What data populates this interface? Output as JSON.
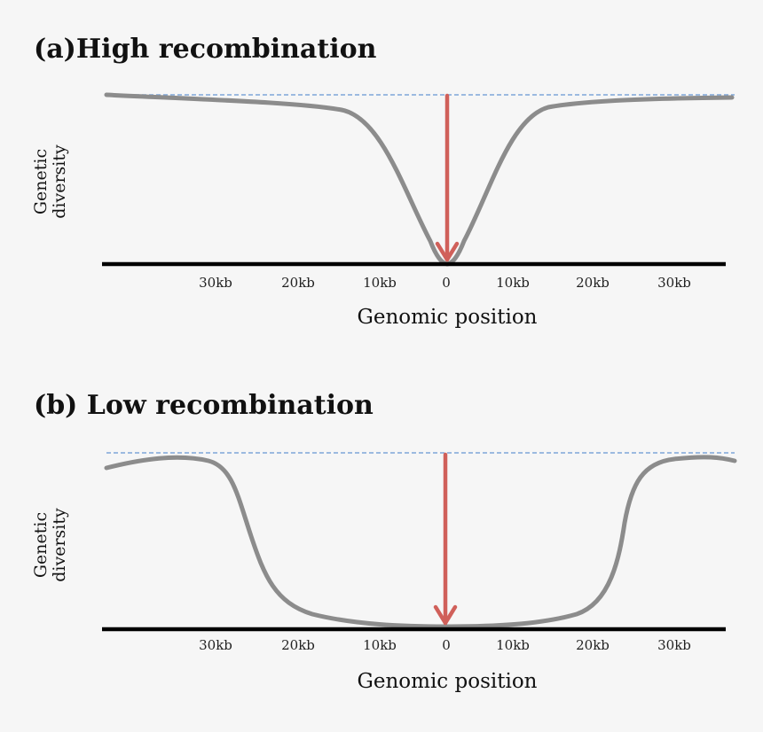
{
  "panels": [
    {
      "title": "(a)High recombination",
      "ylabel_line1": "Genetic",
      "ylabel_line2": "diversity",
      "xlabel": "Genomic position",
      "ticks": [
        "30kb",
        "20kb",
        "10kb",
        "0",
        "10kb",
        "20kb",
        "30kb"
      ]
    },
    {
      "title": "(b) Low recombination",
      "ylabel_line1": "Genetic",
      "ylabel_line2": "diversity",
      "xlabel": "Genomic position",
      "ticks": [
        "30kb",
        "20kb",
        "10kb",
        "0",
        "10kb",
        "20kb",
        "30kb"
      ]
    }
  ],
  "colors": {
    "background": "#f6f6f6",
    "diversity_curve": "#8c8c8c",
    "sweep_arrow": "#d0605a",
    "reference_line": "#7ea6d8",
    "axis_line": "#000000"
  }
}
